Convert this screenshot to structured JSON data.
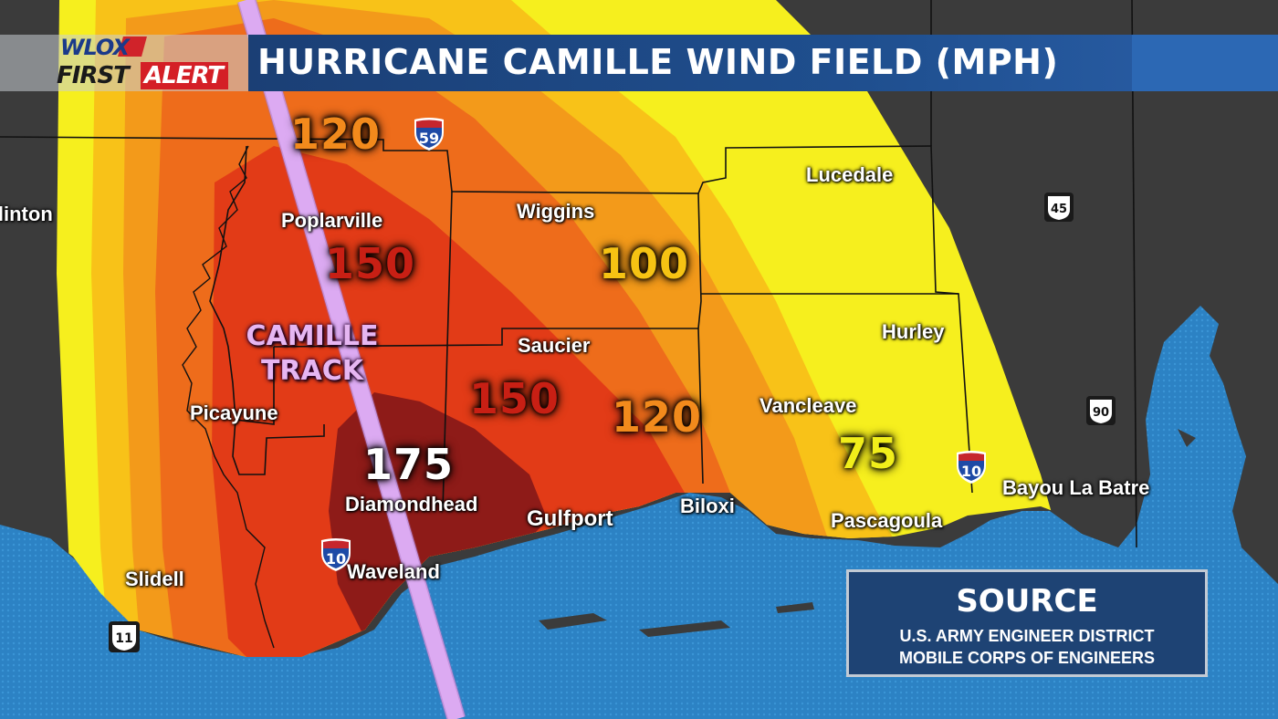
{
  "header": {
    "logo_top": "WLOX",
    "logo_first": "FIRST",
    "logo_alert": "ALERT",
    "title": "HURRICANE CAMILLE WIND FIELD (MPH)"
  },
  "colors": {
    "gulf_water": "#2f86c8",
    "land": "#3d3d3d",
    "zone_75": "#f6ef1e",
    "zone_100": "#f8c218",
    "zone_120": "#f39a1a",
    "zone_135": "#ef6a17",
    "zone_150": "#e23a16",
    "zone_175": "#8c1a18",
    "track": "#d9a6f0"
  },
  "cities": [
    {
      "id": "clinton",
      "name": "Clinton"
    },
    {
      "id": "poplarville",
      "name": "Poplarville"
    },
    {
      "id": "wiggins",
      "name": "Wiggins"
    },
    {
      "id": "lucedale",
      "name": "Lucedale"
    },
    {
      "id": "picayune",
      "name": "Picayune"
    },
    {
      "id": "saucier",
      "name": "Saucier"
    },
    {
      "id": "hurley",
      "name": "Hurley"
    },
    {
      "id": "vancleave",
      "name": "Vancleave"
    },
    {
      "id": "diamondhead",
      "name": "Diamondhead"
    },
    {
      "id": "gulfport",
      "name": "Gulfport"
    },
    {
      "id": "biloxi",
      "name": "Biloxi"
    },
    {
      "id": "pascagoula",
      "name": "Pascagoula"
    },
    {
      "id": "bayou",
      "name": "Bayou La Batre"
    },
    {
      "id": "waveland",
      "name": "Waveland"
    },
    {
      "id": "slidell",
      "name": "Slidell"
    }
  ],
  "wind_labels": [
    {
      "id": "w120a",
      "value": "120"
    },
    {
      "id": "w150a",
      "value": "150"
    },
    {
      "id": "w100",
      "value": "100"
    },
    {
      "id": "w150b",
      "value": "150"
    },
    {
      "id": "w120b",
      "value": "120"
    },
    {
      "id": "w175",
      "value": "175"
    },
    {
      "id": "w75",
      "value": "75"
    }
  ],
  "track_label": {
    "line1": "CAMILLE",
    "line2": "TRACK"
  },
  "highways": [
    {
      "id": "i59",
      "number": "59",
      "kind": "interstate"
    },
    {
      "id": "us45",
      "number": "45",
      "kind": "us"
    },
    {
      "id": "us90",
      "number": "90",
      "kind": "us"
    },
    {
      "id": "i10east",
      "number": "10",
      "kind": "interstate"
    },
    {
      "id": "i10west",
      "number": "10",
      "kind": "interstate"
    },
    {
      "id": "us11",
      "number": "11",
      "kind": "us"
    }
  ],
  "source": {
    "heading": "SOURCE",
    "line1": "U.S. ARMY ENGINEER DISTRICT",
    "line2": "MOBILE CORPS OF ENGINEERS"
  }
}
